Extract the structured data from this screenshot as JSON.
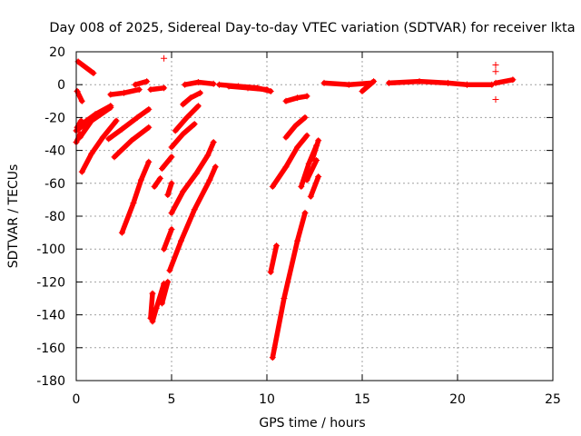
{
  "chart_data": {
    "type": "scatter",
    "title": "Day 008 of 2025, Sidereal Day-to-day VTEC variation (SDTVAR) for receiver lkta",
    "xlabel": "GPS time / hours",
    "ylabel": "SDTVAR / TECUs",
    "xlim": [
      0,
      25
    ],
    "ylim": [
      -180,
      20
    ],
    "xticks": [
      0,
      5,
      10,
      15,
      20,
      25
    ],
    "yticks": [
      20,
      0,
      -20,
      -40,
      -60,
      -80,
      -100,
      -120,
      -140,
      -160,
      -180
    ],
    "grid": true,
    "legend": "none",
    "marker": "+",
    "color": "#ff0000",
    "series": [
      {
        "x": [
          0.1,
          0.9
        ],
        "y": [
          14,
          7
        ]
      },
      {
        "x": [
          0.05,
          0.3
        ],
        "y": [
          -4,
          -10
        ]
      },
      {
        "x": [
          0.05,
          0.25
        ],
        "y": [
          -26,
          -22
        ]
      },
      {
        "x": [
          0.0,
          0.2
        ],
        "y": [
          -35,
          -30
        ]
      },
      {
        "x": [
          0.0,
          0.7,
          1.3,
          1.8
        ],
        "y": [
          -28,
          -22,
          -17,
          -13
        ]
      },
      {
        "x": [
          0.3,
          1.0,
          1.8
        ],
        "y": [
          -24,
          -18,
          -13
        ]
      },
      {
        "x": [
          0.2,
          0.8,
          1.8
        ],
        "y": [
          -32,
          -22,
          -14
        ]
      },
      {
        "x": [
          0.3,
          0.8,
          1.4,
          2.1
        ],
        "y": [
          -53,
          -42,
          -32,
          -22
        ]
      },
      {
        "x": [
          1.8,
          2.5,
          3.3
        ],
        "y": [
          -6,
          -5,
          -3
        ]
      },
      {
        "x": [
          3.1,
          3.7
        ],
        "y": [
          0,
          2
        ]
      },
      {
        "x": [
          3.9,
          4.6
        ],
        "y": [
          -3,
          -2
        ]
      },
      {
        "x": [
          1.7,
          2.4,
          3.2,
          3.8
        ],
        "y": [
          -33,
          -27,
          -20,
          -15
        ]
      },
      {
        "x": [
          2.0,
          2.9,
          3.8
        ],
        "y": [
          -44,
          -34,
          -26
        ]
      },
      {
        "x": [
          2.4,
          3.0,
          3.4,
          3.8
        ],
        "y": [
          -90,
          -72,
          -58,
          -47
        ]
      },
      {
        "x": [
          3.9,
          4.0
        ],
        "y": [
          -142,
          -127
        ]
      },
      {
        "x": [
          4.0,
          4.2,
          4.6
        ],
        "y": [
          -144,
          -136,
          -121
        ]
      },
      {
        "x": [
          4.5,
          4.8
        ],
        "y": [
          -133,
          -120
        ]
      },
      {
        "x": [
          4.6,
          5.0
        ],
        "y": [
          -100,
          -88
        ]
      },
      {
        "x": [
          4.1,
          4.4
        ],
        "y": [
          -62,
          -57
        ]
      },
      {
        "x": [
          4.5,
          5.0
        ],
        "y": [
          -51,
          -44
        ]
      },
      {
        "x": [
          4.8,
          5.0
        ],
        "y": [
          -67,
          -60
        ]
      },
      {
        "x": [
          4.9,
          5.5,
          6.2,
          7.0,
          7.3
        ],
        "y": [
          -113,
          -95,
          -76,
          -58,
          -50
        ]
      },
      {
        "x": [
          5.0,
          5.6,
          6.3,
          6.9,
          7.2
        ],
        "y": [
          -78,
          -65,
          -54,
          -43,
          -35
        ]
      },
      {
        "x": [
          5.0,
          5.6,
          6.2
        ],
        "y": [
          -38,
          -30,
          -24
        ]
      },
      {
        "x": [
          5.2,
          5.8,
          6.4
        ],
        "y": [
          -28,
          -20,
          -13
        ]
      },
      {
        "x": [
          5.6,
          6.0,
          6.5
        ],
        "y": [
          -12,
          -8,
          -5
        ]
      },
      {
        "x": [
          5.7,
          6.4,
          7.2
        ],
        "y": [
          0,
          1.5,
          0.5
        ]
      },
      {
        "x": [
          7.5,
          8.5,
          9.5,
          10.2
        ],
        "y": [
          0,
          -1,
          -2,
          -4
        ]
      },
      {
        "x": [
          8.0,
          9.0,
          10.0
        ],
        "y": [
          -1,
          -2,
          -3
        ]
      },
      {
        "x": [
          10.2,
          10.5
        ],
        "y": [
          -114,
          -98
        ]
      },
      {
        "x": [
          10.3,
          10.9,
          11.6,
          12.0
        ],
        "y": [
          -166,
          -130,
          -95,
          -78
        ]
      },
      {
        "x": [
          10.3,
          11.0,
          11.6,
          12.1
        ],
        "y": [
          -62,
          -50,
          -38,
          -31
        ]
      },
      {
        "x": [
          11.0,
          11.5,
          12.0
        ],
        "y": [
          -32,
          -25,
          -20
        ]
      },
      {
        "x": [
          11.0,
          11.6,
          12.1
        ],
        "y": [
          -10,
          -8,
          -7
        ]
      },
      {
        "x": [
          11.8,
          12.2,
          12.6
        ],
        "y": [
          -62,
          -48,
          -37
        ]
      },
      {
        "x": [
          12.1,
          12.6
        ],
        "y": [
          -58,
          -46
        ]
      },
      {
        "x": [
          12.3,
          12.7
        ],
        "y": [
          -68,
          -56
        ]
      },
      {
        "x": [
          12.4,
          12.7
        ],
        "y": [
          -45,
          -34
        ]
      },
      {
        "x": [
          13.0,
          14.3,
          15.5
        ],
        "y": [
          1,
          0,
          1
        ]
      },
      {
        "x": [
          15.0,
          15.6
        ],
        "y": [
          -4,
          2
        ]
      },
      {
        "x": [
          16.4,
          18.0,
          19.5,
          20.5
        ],
        "y": [
          1,
          2,
          1,
          0
        ]
      },
      {
        "x": [
          20.5,
          21.8
        ],
        "y": [
          0,
          0
        ]
      },
      {
        "x": [
          22.0,
          22.9
        ],
        "y": [
          1,
          3
        ]
      }
    ],
    "outliers": {
      "x": [
        4.6,
        22.0,
        22.0,
        22.0
      ],
      "y": [
        16,
        12,
        8,
        -9
      ]
    }
  }
}
